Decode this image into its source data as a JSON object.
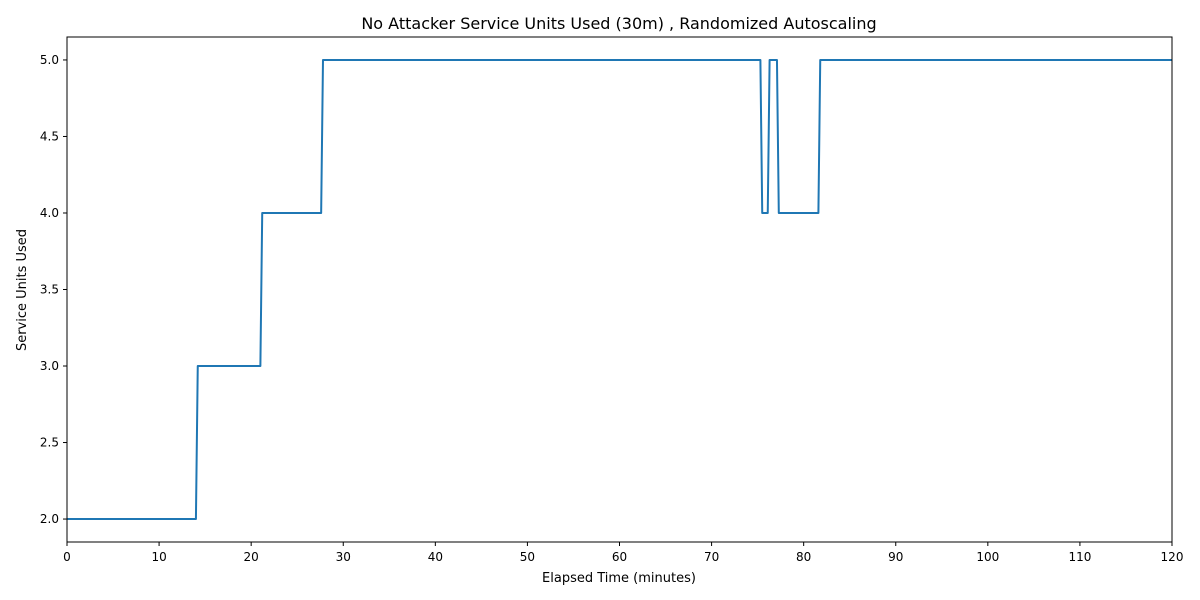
{
  "chart_data": {
    "type": "line",
    "title": "No Attacker Service Units Used (30m) , Randomized Autoscaling",
    "xlabel": "Elapsed Time (minutes)",
    "ylabel": "Service Units Used",
    "xlim": [
      0,
      120
    ],
    "ylim": [
      1.85,
      5.15
    ],
    "xticks": [
      "0",
      "10",
      "20",
      "30",
      "40",
      "50",
      "60",
      "70",
      "80",
      "90",
      "100",
      "110",
      "120"
    ],
    "yticks": [
      "2.0",
      "2.5",
      "3.0",
      "3.5",
      "4.0",
      "4.5",
      "5.0"
    ],
    "grid": false,
    "legend": "none",
    "series": [
      {
        "color": "#1f77b4",
        "x": [
          0,
          14.0,
          14.2,
          21.0,
          21.2,
          27.6,
          27.8,
          75.3,
          75.5,
          76.1,
          76.3,
          77.1,
          77.3,
          81.6,
          81.8,
          120
        ],
        "y": [
          2,
          2,
          3,
          3,
          4,
          4,
          5,
          5,
          4,
          4,
          5,
          5,
          4,
          4,
          5,
          5
        ]
      }
    ]
  }
}
